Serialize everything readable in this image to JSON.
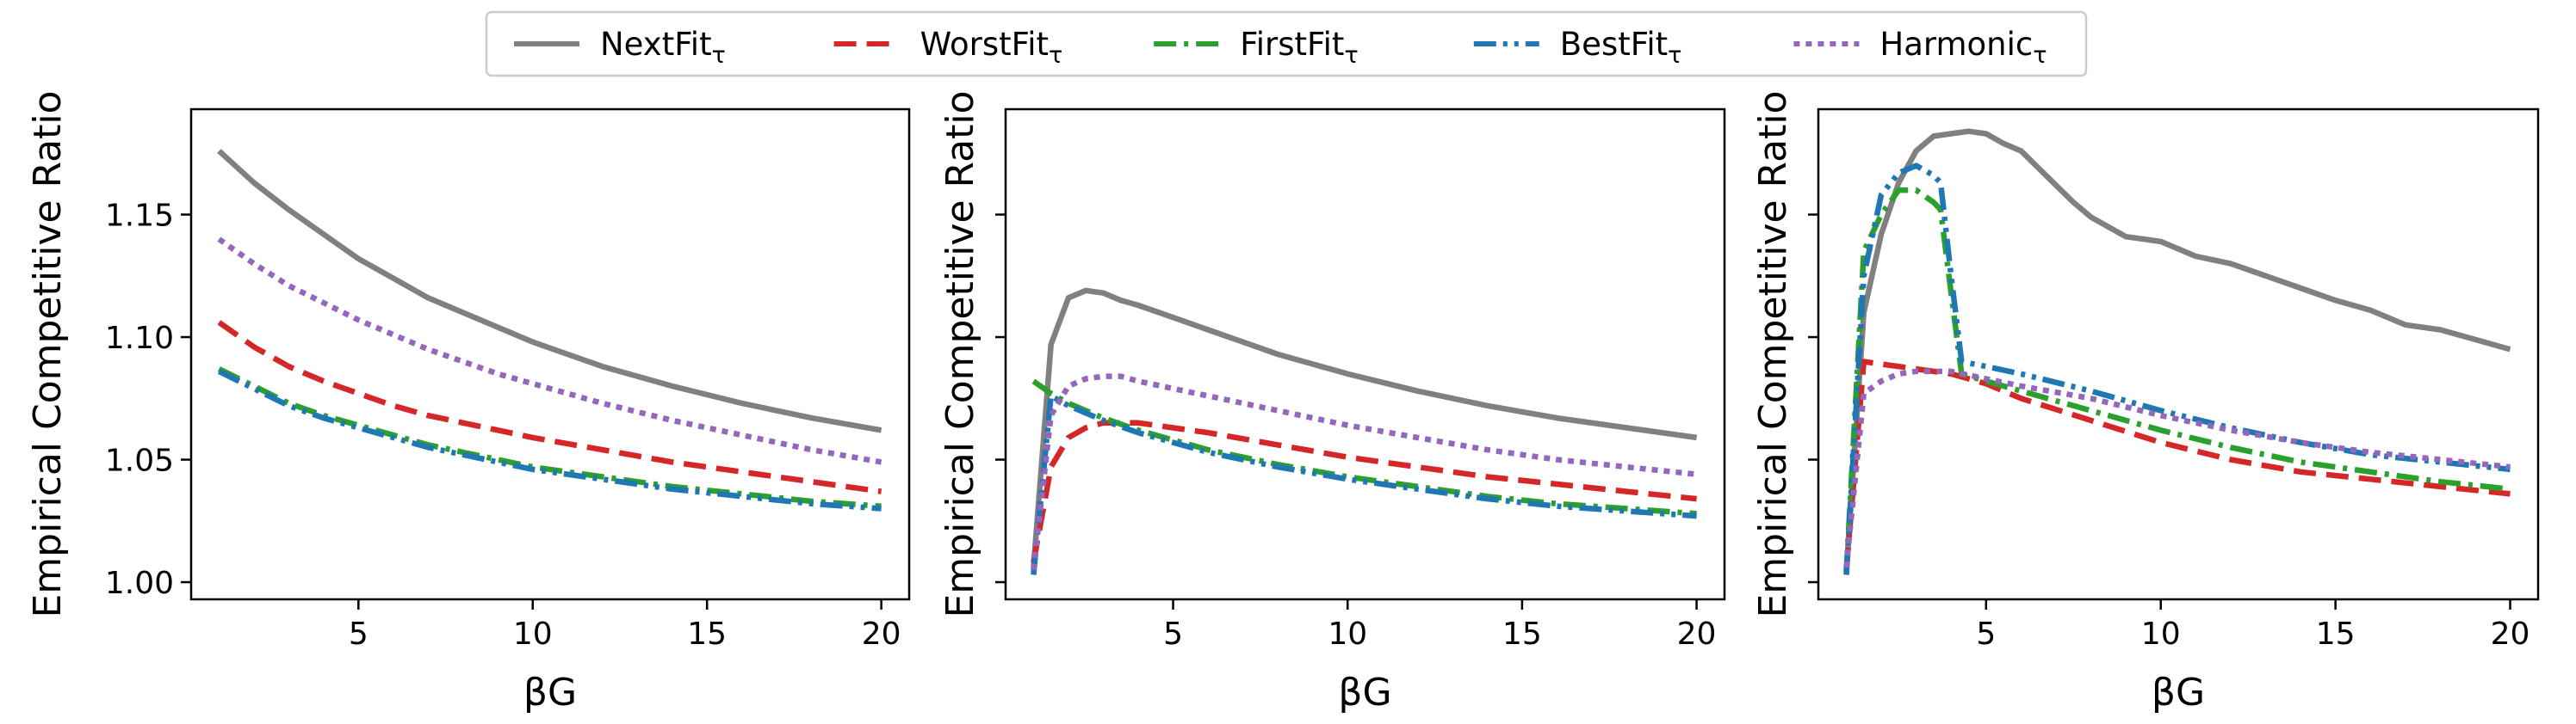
{
  "legend": {
    "placement": "top-center",
    "entries": [
      {
        "name": "NextFit",
        "sub": "τ",
        "color": "#808080",
        "dash": "solid"
      },
      {
        "name": "WorstFit",
        "sub": "τ",
        "color": "#d62728",
        "dash": "dashed"
      },
      {
        "name": "FirstFit",
        "sub": "τ",
        "color": "#2ca02c",
        "dash": "dashdot"
      },
      {
        "name": "BestFit",
        "sub": "τ",
        "color": "#1f77b4",
        "dash": "dashdotdot"
      },
      {
        "name": "Harmonic",
        "sub": "τ",
        "color": "#9467bd",
        "dash": "dotted"
      }
    ]
  },
  "chart_data": [
    {
      "type": "line",
      "xlabel": "βG",
      "ylabel": "Empirical Competitive Ratio",
      "xlim": [
        0.2,
        20.8
      ],
      "ylim": [
        0.993,
        1.193
      ],
      "xticks": [
        "5",
        "10",
        "15",
        "20"
      ],
      "yticks": [
        "1.00",
        "1.05",
        "1.10",
        "1.15"
      ],
      "show_ytick_labels": true,
      "grid": false,
      "series": [
        {
          "name": "NextFit",
          "x": [
            1,
            2,
            3,
            4,
            5,
            6,
            7,
            8,
            9,
            10,
            12,
            14,
            16,
            18,
            20
          ],
          "y": [
            1.176,
            1.163,
            1.152,
            1.142,
            1.132,
            1.124,
            1.116,
            1.11,
            1.104,
            1.098,
            1.088,
            1.08,
            1.073,
            1.067,
            1.062
          ]
        },
        {
          "name": "WorstFit",
          "x": [
            1,
            2,
            3,
            4,
            5,
            6,
            7,
            8,
            9,
            10,
            12,
            14,
            16,
            18,
            20
          ],
          "y": [
            1.106,
            1.096,
            1.088,
            1.082,
            1.077,
            1.072,
            1.068,
            1.065,
            1.062,
            1.059,
            1.054,
            1.049,
            1.045,
            1.041,
            1.037
          ]
        },
        {
          "name": "FirstFit",
          "x": [
            1,
            2,
            3,
            4,
            5,
            6,
            7,
            8,
            9,
            10,
            12,
            14,
            16,
            18,
            20
          ],
          "y": [
            1.087,
            1.08,
            1.073,
            1.068,
            1.064,
            1.06,
            1.056,
            1.053,
            1.05,
            1.047,
            1.043,
            1.039,
            1.036,
            1.033,
            1.031
          ]
        },
        {
          "name": "BestFit",
          "x": [
            1,
            2,
            3,
            4,
            5,
            6,
            7,
            8,
            9,
            10,
            12,
            14,
            16,
            18,
            20
          ],
          "y": [
            1.086,
            1.079,
            1.072,
            1.067,
            1.063,
            1.059,
            1.055,
            1.052,
            1.049,
            1.046,
            1.042,
            1.038,
            1.035,
            1.032,
            1.03
          ]
        },
        {
          "name": "Harmonic",
          "x": [
            1,
            2,
            3,
            4,
            5,
            6,
            7,
            8,
            9,
            10,
            12,
            14,
            16,
            18,
            20
          ],
          "y": [
            1.14,
            1.13,
            1.121,
            1.114,
            1.107,
            1.101,
            1.095,
            1.09,
            1.085,
            1.081,
            1.073,
            1.066,
            1.06,
            1.054,
            1.049
          ]
        }
      ]
    },
    {
      "type": "line",
      "xlabel": "βG",
      "ylabel": "Empirical Competitive Ratio",
      "xlim": [
        0.2,
        20.8
      ],
      "ylim": [
        0.993,
        1.193
      ],
      "xticks": [
        "5",
        "10",
        "15",
        "20"
      ],
      "yticks": [
        "1.00",
        "1.05",
        "1.10",
        "1.15"
      ],
      "show_ytick_labels": false,
      "grid": false,
      "series": [
        {
          "name": "NextFit",
          "x": [
            1,
            1.5,
            2,
            2.5,
            3,
            3.5,
            4,
            5,
            6,
            7,
            8,
            10,
            12,
            14,
            16,
            18,
            20
          ],
          "y": [
            1.006,
            1.097,
            1.116,
            1.119,
            1.118,
            1.115,
            1.113,
            1.108,
            1.103,
            1.098,
            1.093,
            1.085,
            1.078,
            1.072,
            1.067,
            1.063,
            1.059
          ]
        },
        {
          "name": "WorstFit",
          "x": [
            1,
            1.5,
            2,
            2.5,
            3,
            3.5,
            4,
            5,
            6,
            8,
            10,
            12,
            14,
            16,
            18,
            20
          ],
          "y": [
            1.008,
            1.047,
            1.059,
            1.063,
            1.065,
            1.065,
            1.065,
            1.063,
            1.061,
            1.056,
            1.051,
            1.047,
            1.043,
            1.04,
            1.037,
            1.034
          ]
        },
        {
          "name": "FirstFit",
          "x": [
            1,
            1.5,
            2,
            3,
            4,
            5,
            6,
            8,
            10,
            12,
            14,
            16,
            18,
            20
          ],
          "y": [
            1.082,
            1.077,
            1.073,
            1.067,
            1.062,
            1.058,
            1.054,
            1.048,
            1.043,
            1.039,
            1.035,
            1.032,
            1.03,
            1.028
          ]
        },
        {
          "name": "BestFit",
          "x": [
            1,
            1.5,
            2,
            3,
            4,
            5,
            6,
            8,
            10,
            12,
            14,
            16,
            18,
            20
          ],
          "y": [
            1.003,
            1.076,
            1.072,
            1.066,
            1.061,
            1.057,
            1.053,
            1.047,
            1.042,
            1.038,
            1.034,
            1.031,
            1.029,
            1.027
          ]
        },
        {
          "name": "Harmonic",
          "x": [
            1,
            1.5,
            2,
            2.5,
            3,
            3.5,
            4,
            5,
            6,
            8,
            10,
            12,
            14,
            16,
            18,
            20
          ],
          "y": [
            1.005,
            1.068,
            1.08,
            1.083,
            1.084,
            1.084,
            1.082,
            1.079,
            1.076,
            1.07,
            1.064,
            1.059,
            1.054,
            1.05,
            1.047,
            1.044
          ]
        }
      ]
    },
    {
      "type": "line",
      "xlabel": "βG",
      "ylabel": "Empirical Competitive Ratio",
      "xlim": [
        0.2,
        20.8
      ],
      "ylim": [
        0.993,
        1.193
      ],
      "xticks": [
        "5",
        "10",
        "15",
        "20"
      ],
      "yticks": [
        "1.00",
        "1.05",
        "1.10",
        "1.15"
      ],
      "show_ytick_labels": false,
      "grid": false,
      "series": [
        {
          "name": "NextFit",
          "x": [
            1,
            1.5,
            2,
            2.5,
            3,
            3.5,
            4,
            4.5,
            5,
            5.5,
            6,
            6.5,
            7,
            7.5,
            8,
            9,
            10,
            11,
            12,
            13,
            14,
            15,
            16,
            17,
            18,
            19,
            20
          ],
          "y": [
            1.004,
            1.11,
            1.142,
            1.163,
            1.176,
            1.182,
            1.183,
            1.184,
            1.183,
            1.179,
            1.176,
            1.169,
            1.162,
            1.155,
            1.149,
            1.141,
            1.139,
            1.133,
            1.13,
            1.125,
            1.12,
            1.115,
            1.111,
            1.105,
            1.103,
            1.099,
            1.095
          ]
        },
        {
          "name": "WorstFit",
          "x": [
            1,
            1.5,
            2,
            2.5,
            3,
            3.5,
            4,
            5,
            6,
            8,
            10,
            12,
            14,
            16,
            18,
            20
          ],
          "y": [
            1.005,
            1.09,
            1.089,
            1.088,
            1.087,
            1.086,
            1.085,
            1.081,
            1.075,
            1.066,
            1.057,
            1.05,
            1.045,
            1.042,
            1.039,
            1.036
          ]
        },
        {
          "name": "FirstFit",
          "x": [
            1,
            1.5,
            2,
            2.5,
            3,
            3.5,
            3.7,
            4,
            4.3,
            5,
            6,
            8,
            10,
            12,
            14,
            16,
            18,
            20
          ],
          "y": [
            1.004,
            1.135,
            1.15,
            1.16,
            1.16,
            1.155,
            1.152,
            1.118,
            1.085,
            1.082,
            1.078,
            1.07,
            1.062,
            1.055,
            1.049,
            1.045,
            1.041,
            1.038
          ]
        },
        {
          "name": "BestFit",
          "x": [
            1,
            1.5,
            2,
            2.5,
            3,
            3.5,
            3.7,
            4,
            4.3,
            5,
            6,
            8,
            10,
            12,
            14,
            16,
            18,
            20
          ],
          "y": [
            1.003,
            1.125,
            1.158,
            1.167,
            1.17,
            1.166,
            1.163,
            1.125,
            1.09,
            1.088,
            1.085,
            1.078,
            1.07,
            1.063,
            1.057,
            1.052,
            1.049,
            1.046
          ]
        },
        {
          "name": "Harmonic",
          "x": [
            1,
            1.5,
            2,
            2.5,
            3,
            3.5,
            4,
            5,
            6,
            8,
            10,
            12,
            14,
            16,
            18,
            20
          ],
          "y": [
            1.006,
            1.077,
            1.082,
            1.085,
            1.086,
            1.086,
            1.086,
            1.083,
            1.08,
            1.075,
            1.068,
            1.062,
            1.057,
            1.053,
            1.05,
            1.047
          ]
        }
      ]
    }
  ]
}
